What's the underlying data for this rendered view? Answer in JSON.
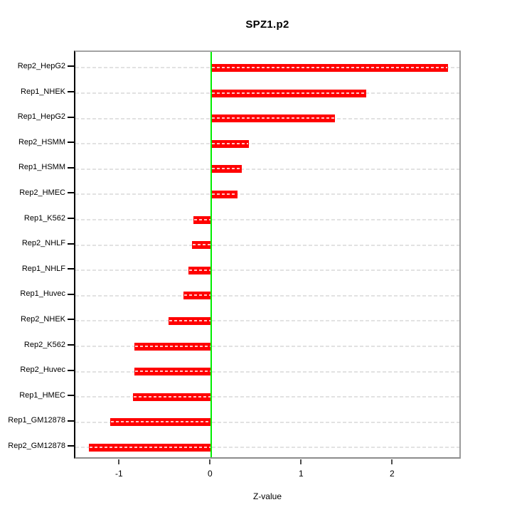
{
  "figure": {
    "title": "SPZ1.p2",
    "xlabel": "Z-value"
  },
  "chart_data": {
    "type": "bar",
    "orientation": "horizontal",
    "title": "SPZ1.p2",
    "xlabel": "Z-value",
    "ylabel": "",
    "categories": [
      "Rep2_HepG2",
      "Rep1_NHEK",
      "Rep1_HepG2",
      "Rep2_HSMM",
      "Rep1_HSMM",
      "Rep2_HMEC",
      "Rep1_K562",
      "Rep2_NHLF",
      "Rep1_NHLF",
      "Rep1_Huvec",
      "Rep2_NHEK",
      "Rep2_K562",
      "Rep2_Huvec",
      "Rep1_HMEC",
      "Rep1_GM12878",
      "Rep2_GM12878"
    ],
    "values": [
      2.6,
      1.7,
      1.36,
      0.41,
      0.33,
      0.29,
      -0.2,
      -0.21,
      -0.25,
      -0.31,
      -0.47,
      -0.85,
      -0.85,
      -0.86,
      -1.11,
      -1.35
    ],
    "xticks": [
      -1,
      0,
      1,
      2
    ],
    "xlim": [
      -1.49,
      2.76
    ],
    "grid": "dashed horizontal line per category",
    "legend_position": "none",
    "bar_color": "#ff0000",
    "zero_line_color": "#00ee00",
    "grid_color": "#e2e2e2",
    "axis_box_color": "#9a9a9a"
  }
}
